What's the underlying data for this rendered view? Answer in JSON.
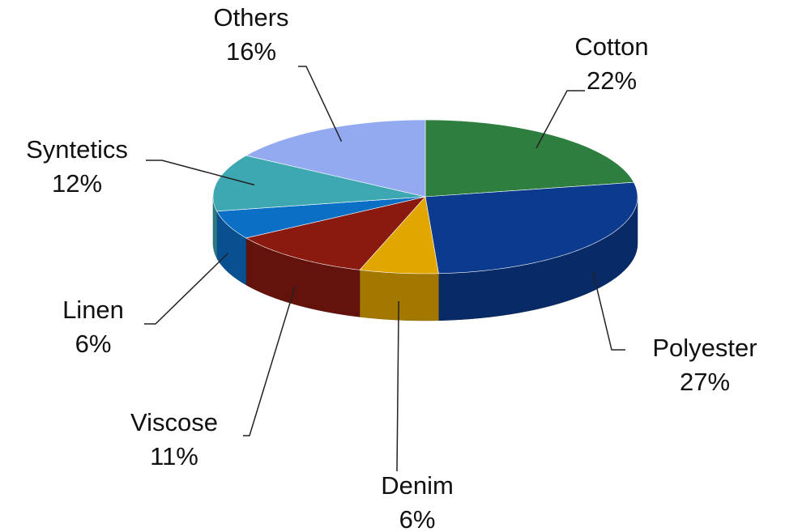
{
  "chart_data": {
    "type": "pie",
    "categories": [
      "Cotton",
      "Polyester",
      "Denim",
      "Viscose",
      "Linen",
      "Syntetics",
      "Others"
    ],
    "values": [
      22,
      27,
      6,
      11,
      6,
      12,
      16
    ],
    "value_labels": [
      "22%",
      "27%",
      "6%",
      "11%",
      "6%",
      "12%",
      "16%"
    ],
    "colors": [
      "#2e7f3f",
      "#0b3a8e",
      "#e2a600",
      "#8a1a10",
      "#0b6fc6",
      "#3ea8b2",
      "#94aaf0"
    ]
  }
}
